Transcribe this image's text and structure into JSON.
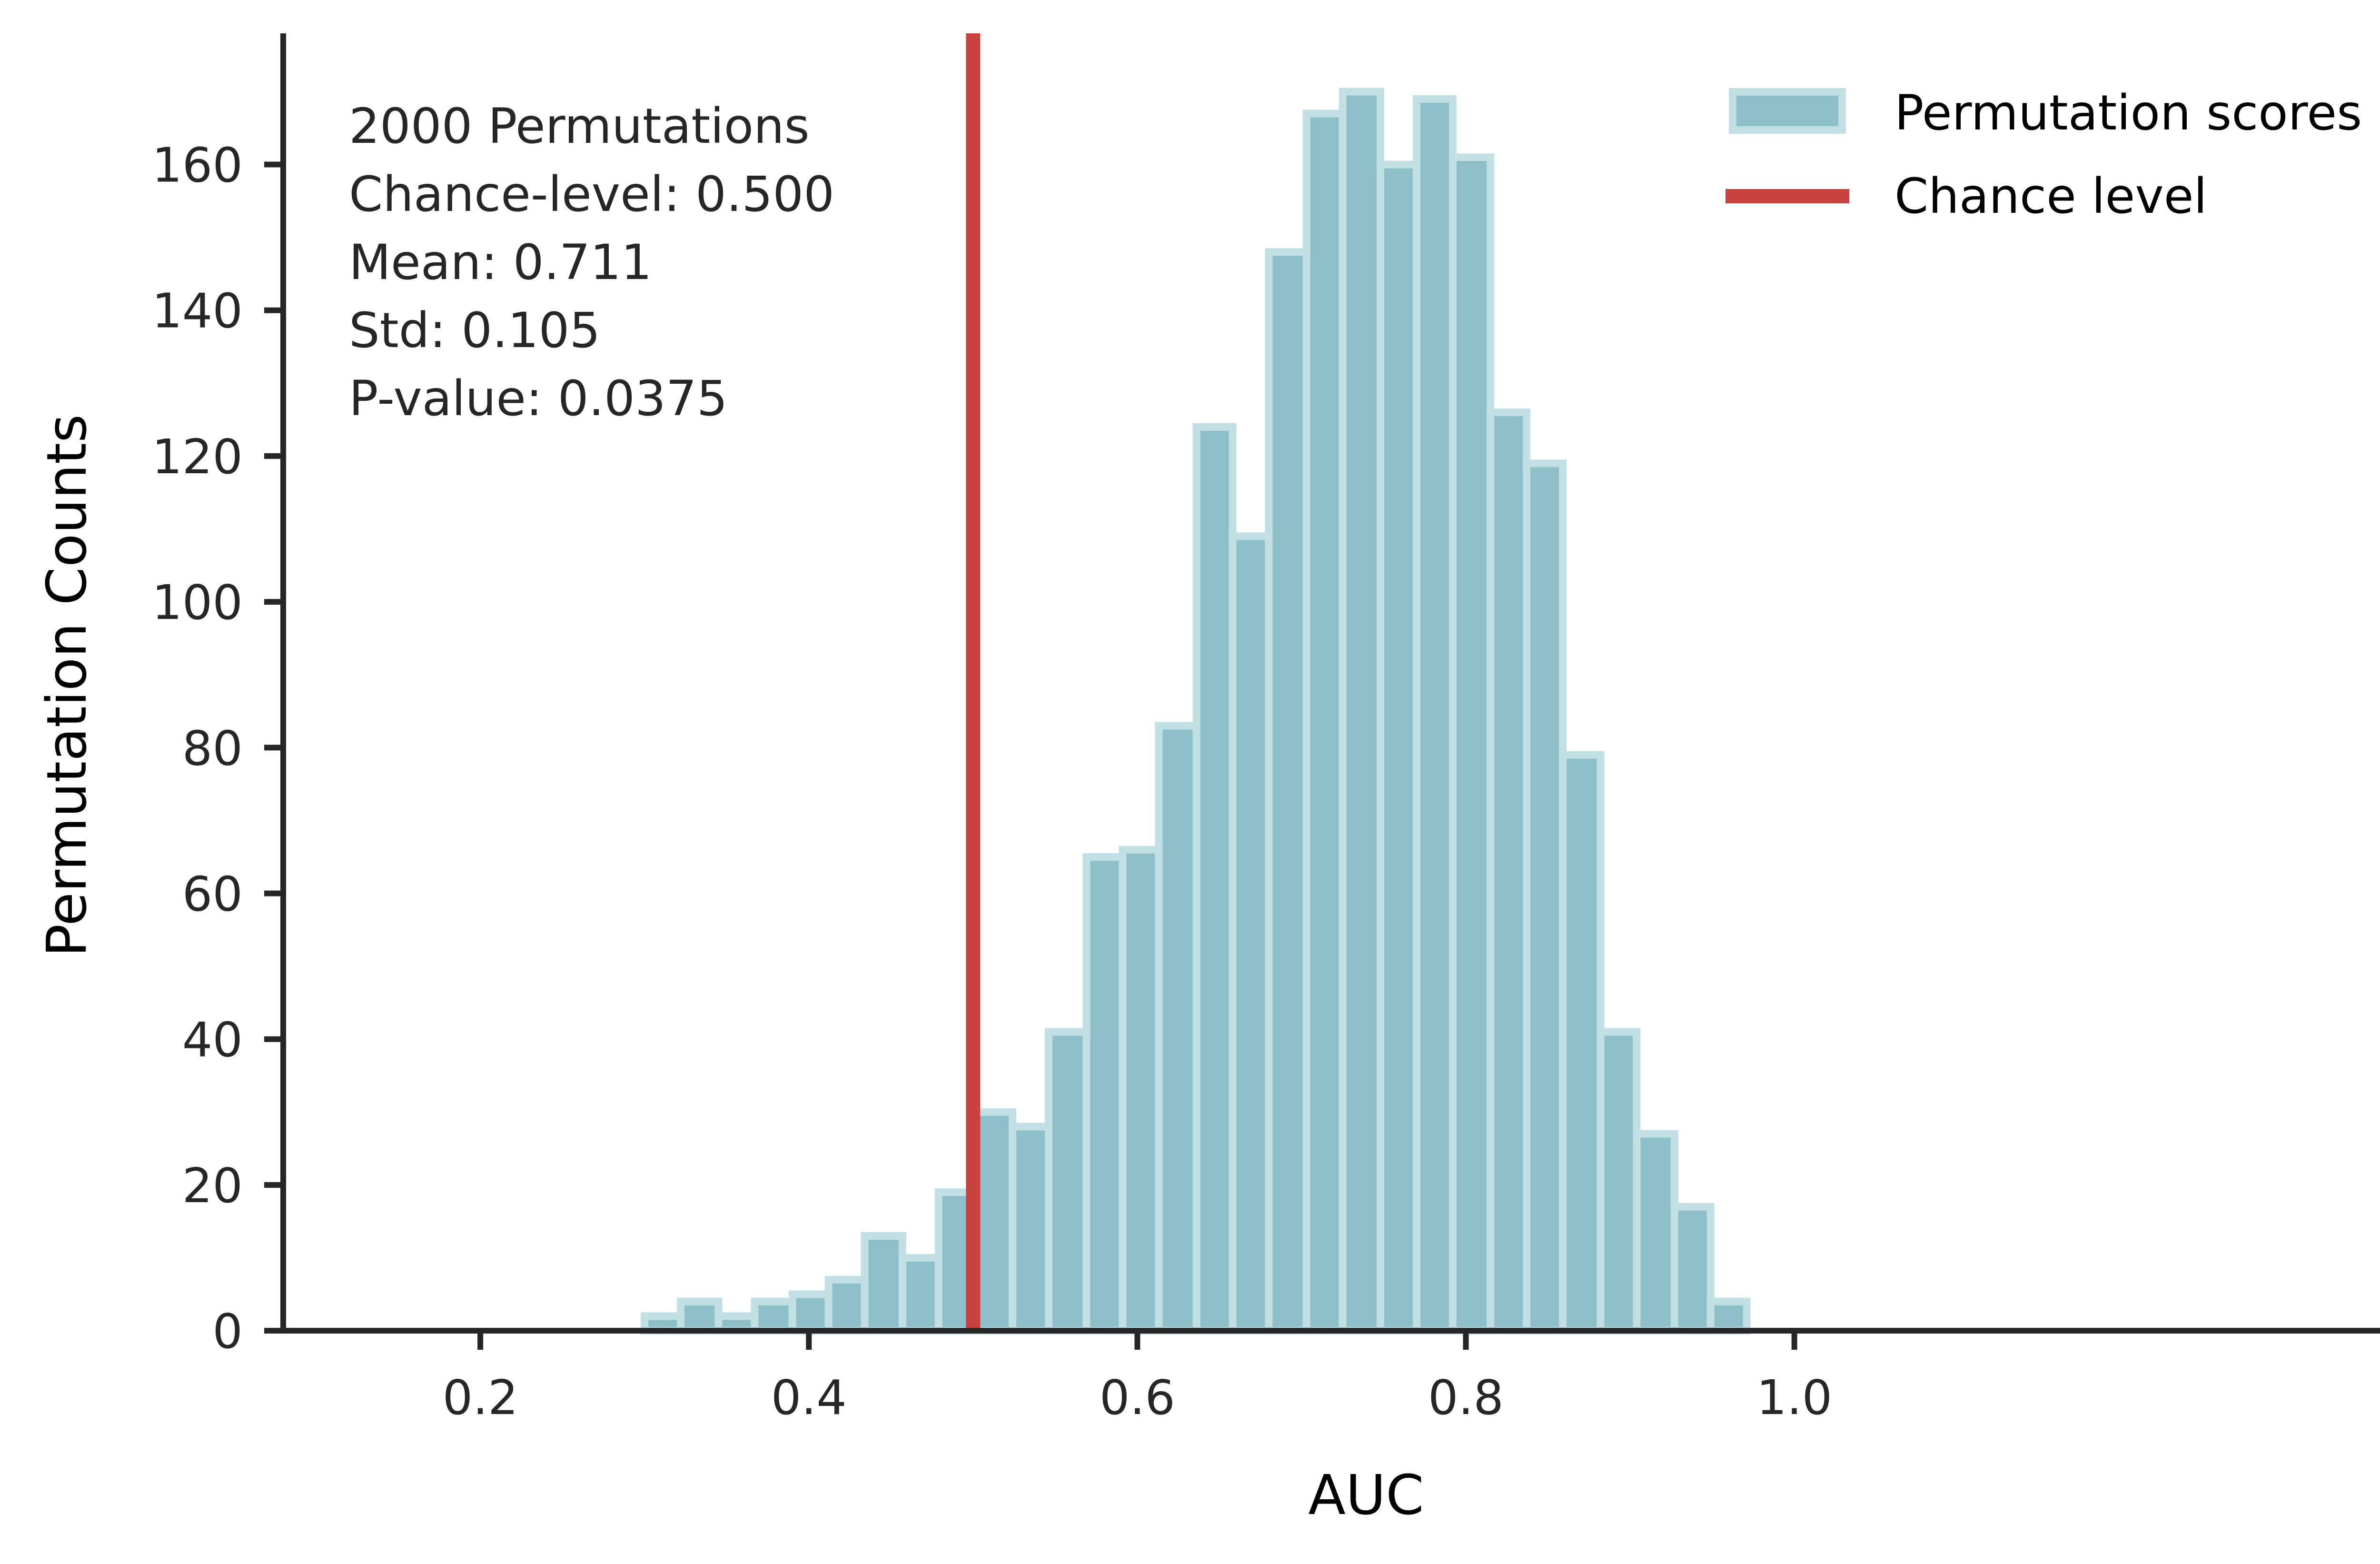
{
  "chart_data": {
    "type": "bar",
    "subtype": "histogram",
    "xlabel": "AUC",
    "ylabel": "Permutation Counts",
    "xlim": [
      0.08,
      1.4
    ],
    "ylim": [
      0,
      178
    ],
    "x_ticks": [
      0.2,
      0.4,
      0.6,
      0.8,
      1.0
    ],
    "x_tick_labels": [
      "0.2",
      "0.4",
      "0.6",
      "0.8",
      "1.0"
    ],
    "y_ticks": [
      0,
      20,
      40,
      60,
      80,
      100,
      120,
      140,
      160
    ],
    "y_tick_labels": [
      "0",
      "20",
      "40",
      "60",
      "80",
      "100",
      "120",
      "140",
      "160"
    ],
    "grid": false,
    "series": [
      {
        "name": "Permutation scores",
        "color": "#8dbfc8",
        "edge_color": "#c2e0e4",
        "bins": [
          {
            "x0": 0.3,
            "x1": 0.322,
            "count": 2
          },
          {
            "x0": 0.322,
            "x1": 0.345,
            "count": 4
          },
          {
            "x0": 0.345,
            "x1": 0.367,
            "count": 2
          },
          {
            "x0": 0.367,
            "x1": 0.39,
            "count": 4
          },
          {
            "x0": 0.39,
            "x1": 0.412,
            "count": 5
          },
          {
            "x0": 0.412,
            "x1": 0.434,
            "count": 7
          },
          {
            "x0": 0.434,
            "x1": 0.457,
            "count": 13
          },
          {
            "x0": 0.457,
            "x1": 0.479,
            "count": 10
          },
          {
            "x0": 0.479,
            "x1": 0.501,
            "count": 19
          },
          {
            "x0": 0.501,
            "x1": 0.524,
            "count": 30
          },
          {
            "x0": 0.524,
            "x1": 0.546,
            "count": 28
          },
          {
            "x0": 0.546,
            "x1": 0.569,
            "count": 41
          },
          {
            "x0": 0.569,
            "x1": 0.591,
            "count": 65
          },
          {
            "x0": 0.591,
            "x1": 0.613,
            "count": 66
          },
          {
            "x0": 0.613,
            "x1": 0.636,
            "count": 83
          },
          {
            "x0": 0.636,
            "x1": 0.658,
            "count": 124
          },
          {
            "x0": 0.658,
            "x1": 0.68,
            "count": 109
          },
          {
            "x0": 0.68,
            "x1": 0.703,
            "count": 148
          },
          {
            "x0": 0.703,
            "x1": 0.725,
            "count": 167
          },
          {
            "x0": 0.725,
            "x1": 0.748,
            "count": 170
          },
          {
            "x0": 0.748,
            "x1": 0.77,
            "count": 160
          },
          {
            "x0": 0.77,
            "x1": 0.792,
            "count": 169
          },
          {
            "x0": 0.792,
            "x1": 0.815,
            "count": 161
          },
          {
            "x0": 0.815,
            "x1": 0.837,
            "count": 126
          },
          {
            "x0": 0.837,
            "x1": 0.859,
            "count": 119
          },
          {
            "x0": 0.859,
            "x1": 0.882,
            "count": 79
          },
          {
            "x0": 0.882,
            "x1": 0.904,
            "count": 41
          },
          {
            "x0": 0.904,
            "x1": 0.927,
            "count": 27
          },
          {
            "x0": 0.927,
            "x1": 0.949,
            "count": 17
          },
          {
            "x0": 0.949,
            "x1": 0.971,
            "count": 4
          }
        ]
      },
      {
        "name": "Chance level",
        "type": "vline",
        "x": 0.5,
        "color": "#c9423f"
      }
    ],
    "legend": {
      "position": "top-right",
      "entries": [
        "Permutation scores",
        "Chance level"
      ]
    },
    "annotation": {
      "position": "top-left",
      "lines": [
        "2000 Permutations",
        "Chance-level: 0.500",
        "Mean: 0.711",
        "Std: 0.105",
        "P-value: 0.0375"
      ]
    }
  }
}
